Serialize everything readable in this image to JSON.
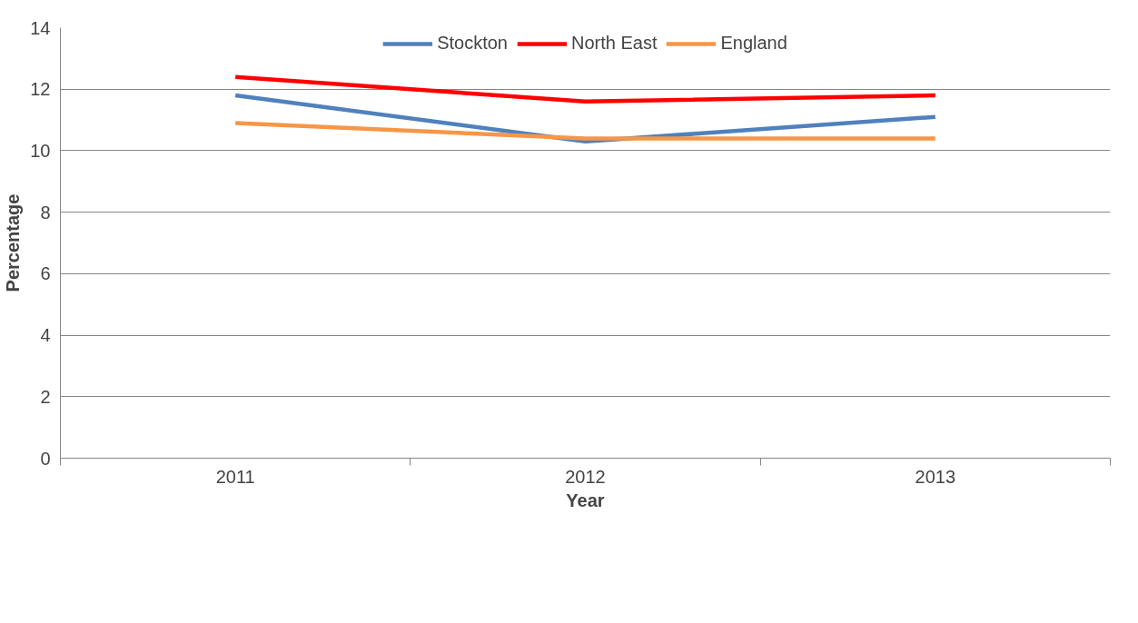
{
  "chart_data": {
    "type": "line",
    "xlabel": "Year",
    "ylabel": "Percentage",
    "categories": [
      "2011",
      "2012",
      "2013"
    ],
    "series": [
      {
        "name": "Stockton",
        "color": "#4f81bd",
        "values": [
          11.8,
          10.3,
          11.1
        ]
      },
      {
        "name": "North East",
        "color": "#ff0000",
        "values": [
          12.4,
          11.6,
          11.8
        ]
      },
      {
        "name": "England",
        "color": "#f79646",
        "values": [
          10.9,
          10.4,
          10.4
        ]
      }
    ],
    "ylim": [
      0,
      14
    ],
    "yticks": [
      0,
      2,
      4,
      6,
      8,
      10,
      12,
      14
    ],
    "grid": "y",
    "legend": "top",
    "marker": "none",
    "line_style": "solid"
  }
}
